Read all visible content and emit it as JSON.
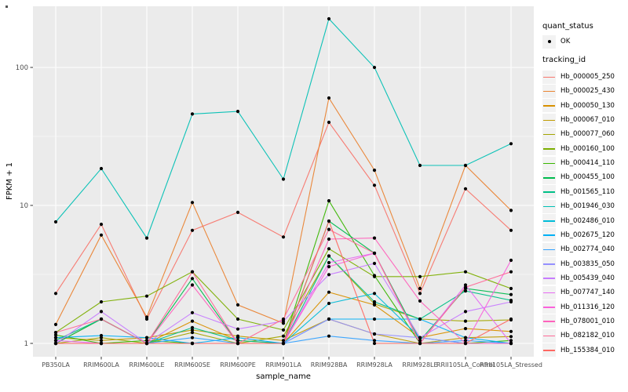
{
  "figure": {
    "type_note": "ggplot2-style line chart",
    "background": "#ffffff",
    "panel_background": "#EBEBEB",
    "grid_color": "#FFFFFF",
    "axis_text_color": "#4D4D4D",
    "legend_key_background": "#F2F2F2"
  },
  "legend": {
    "quant_status": {
      "title": "quant_status",
      "items": [
        {
          "label": "OK",
          "glyph": "black-point"
        }
      ]
    },
    "tracking_id": {
      "title": "tracking_id"
    }
  },
  "chart_data": {
    "type": "line",
    "title": "",
    "xlabel": "sample_name",
    "ylabel": "FPKM + 1",
    "y_scale": "log10",
    "y_ticks": [
      {
        "label": "1",
        "value": 1
      },
      {
        "label": "10",
        "value": 10
      },
      {
        "label": "100",
        "value": 100
      }
    ],
    "y_minor_ticks": [
      3.1623,
      31.623
    ],
    "ylim": [
      0.95,
      280
    ],
    "grid": true,
    "legend_position": "right",
    "marker": {
      "shape": "point",
      "color": "#000000",
      "label": "OK"
    },
    "categories": [
      "PB350LA",
      "RRIM600LA",
      "RRIM600LE",
      "RRIM600SE",
      "RRIM600PE",
      "RRIM901LA",
      "RRIM928BA",
      "RRIM928LA",
      "RRIM928LE",
      "RRII105LA_Control",
      "RRII105LA_Stressed"
    ],
    "series": [
      {
        "name": "Hb_000005_250",
        "color": "#F8766D",
        "values": [
          2.3,
          7.3,
          1.5,
          6.6,
          8.9,
          5.9,
          40,
          14,
          2.3,
          13.2,
          6.6
        ]
      },
      {
        "name": "Hb_000025_430",
        "color": "#EA8331",
        "values": [
          1.37,
          6.1,
          1.55,
          10.5,
          1.9,
          1.4,
          60,
          18,
          2.5,
          19.5,
          9.2
        ]
      },
      {
        "name": "Hb_000050_130",
        "color": "#D89000",
        "values": [
          1.0,
          1.5,
          1.0,
          1.45,
          1.05,
          1.0,
          2.35,
          1.9,
          1.1,
          1.28,
          1.22
        ]
      },
      {
        "name": "Hb_000067_010",
        "color": "#C09B00",
        "values": [
          1.1,
          1.05,
          1.1,
          1.25,
          1.13,
          1.05,
          1.5,
          1.17,
          1.0,
          1.1,
          1.12
        ]
      },
      {
        "name": "Hb_000077_060",
        "color": "#A3A500",
        "values": [
          1.0,
          1.1,
          1.0,
          1.2,
          1.0,
          1.13,
          4.3,
          1.93,
          1.5,
          1.45,
          1.48
        ]
      },
      {
        "name": "Hb_000160_100",
        "color": "#7CAE00",
        "values": [
          1.2,
          2.0,
          2.2,
          3.3,
          1.5,
          1.25,
          4.85,
          3.05,
          3.05,
          3.3,
          2.5
        ]
      },
      {
        "name": "Hb_000414_110",
        "color": "#39B600",
        "values": [
          1.15,
          1.0,
          1.05,
          1.0,
          1.0,
          1.0,
          10.8,
          3.1,
          1.0,
          1.0,
          1.05
        ]
      },
      {
        "name": "Hb_000455_100",
        "color": "#00BB4E",
        "values": [
          1.0,
          1.5,
          1.0,
          2.95,
          1.0,
          1.0,
          7.7,
          4.5,
          1.05,
          2.5,
          2.26
        ]
      },
      {
        "name": "Hb_001565_110",
        "color": "#00C087",
        "values": [
          1.05,
          1.5,
          1.0,
          1.3,
          1.05,
          1.0,
          4.3,
          2.0,
          1.5,
          2.4,
          2.05
        ]
      },
      {
        "name": "Hb_001946_030",
        "color": "#00C0B4",
        "values": [
          7.6,
          18.5,
          5.8,
          46,
          48,
          15.5,
          225,
          100,
          19.5,
          19.5,
          28
        ]
      },
      {
        "name": "Hb_002486_010",
        "color": "#00BCD8",
        "values": [
          1.0,
          1.0,
          1.0,
          1.0,
          1.0,
          1.0,
          1.95,
          2.3,
          1.1,
          1.0,
          1.0
        ]
      },
      {
        "name": "Hb_002675_120",
        "color": "#00B0F6",
        "values": [
          1.1,
          1.14,
          1.1,
          1.0,
          1.1,
          1.0,
          1.5,
          1.5,
          1.5,
          1.1,
          1.0
        ]
      },
      {
        "name": "Hb_002774_040",
        "color": "#35A2FF",
        "values": [
          1.0,
          1.0,
          1.0,
          1.1,
          1.0,
          1.0,
          1.13,
          1.05,
          1.0,
          1.05,
          1.0
        ]
      },
      {
        "name": "Hb_003835_050",
        "color": "#9590FF",
        "values": [
          1.0,
          1.0,
          1.0,
          1.0,
          1.0,
          1.0,
          1.5,
          1.17,
          1.1,
          1.0,
          1.0
        ]
      },
      {
        "name": "Hb_005439_040",
        "color": "#C77CFF",
        "values": [
          1.0,
          1.7,
          1.0,
          1.67,
          1.27,
          1.45,
          3.15,
          3.8,
          1.1,
          1.7,
          2.0
        ]
      },
      {
        "name": "Hb_007747_140",
        "color": "#E76BF3",
        "values": [
          1.05,
          1.0,
          1.0,
          1.0,
          1.0,
          1.0,
          3.85,
          4.5,
          1.0,
          2.65,
          1.0
        ]
      },
      {
        "name": "Hb_011316_120",
        "color": "#FA62DB",
        "values": [
          1.0,
          1.0,
          1.0,
          1.0,
          1.0,
          1.0,
          3.6,
          4.5,
          1.0,
          1.0,
          4.0
        ]
      },
      {
        "name": "Hb_078001_010",
        "color": "#FF62BC",
        "values": [
          1.0,
          1.0,
          1.0,
          2.65,
          1.0,
          1.0,
          5.7,
          5.8,
          2.03,
          1.0,
          1.0
        ]
      },
      {
        "name": "Hb_082182_010",
        "color": "#FF6A98",
        "values": [
          1.2,
          1.5,
          1.0,
          3.3,
          1.0,
          1.5,
          6.7,
          4.5,
          1.0,
          2.55,
          3.3
        ]
      },
      {
        "name": "Hb_155384_010",
        "color": "#FF6862",
        "values": [
          1.0,
          1.0,
          1.0,
          1.0,
          1.0,
          1.0,
          7.7,
          1.0,
          1.0,
          1.0,
          1.5
        ]
      }
    ]
  }
}
